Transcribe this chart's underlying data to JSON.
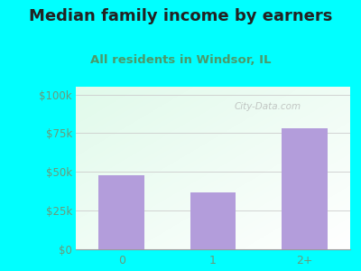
{
  "title": "Median family income by earners",
  "subtitle": "All residents in Windsor, IL",
  "categories": [
    "0",
    "1",
    "2+"
  ],
  "values": [
    48000,
    37000,
    78000
  ],
  "bar_color": "#b39ddb",
  "background_color": "#00FFFF",
  "title_color": "#222222",
  "subtitle_color": "#4a9a6a",
  "axis_label_color": "#6a9a7a",
  "yticks": [
    0,
    25000,
    50000,
    75000,
    100000
  ],
  "ytick_labels": [
    "$0",
    "$25k",
    "$50k",
    "$75k",
    "$100k"
  ],
  "ylim": [
    0,
    105000
  ],
  "title_fontsize": 13,
  "subtitle_fontsize": 9.5,
  "watermark": "City-Data.com"
}
